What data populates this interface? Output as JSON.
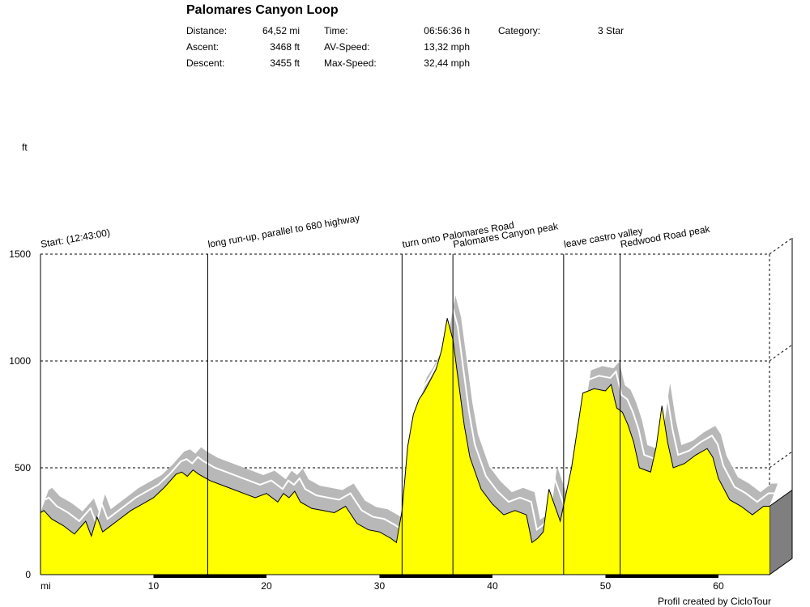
{
  "header": {
    "title": "Palomares Canyon Loop",
    "stats": [
      {
        "label": "Distance:",
        "value": "64,52 mi"
      },
      {
        "label": "Ascent:",
        "value": "3468 ft"
      },
      {
        "label": "Descent:",
        "value": "3455 ft"
      },
      {
        "label": "Time:",
        "value": "06:56:36 h"
      },
      {
        "label": "AV-Speed:",
        "value": "13,32 mph"
      },
      {
        "label": "Max-Speed:",
        "value": "32,44 mph"
      },
      {
        "label": "Category:",
        "value": "3 Star"
      }
    ]
  },
  "footer": "Profil created by CicloTour",
  "colors": {
    "fill": "#ffff00",
    "shadow": "#b8b8b8",
    "side": "#7f7f7f"
  },
  "chart_data": {
    "type": "area",
    "ylabel": "ft",
    "xlabel": "mi",
    "xlim": [
      0,
      64.52
    ],
    "ylim": [
      0,
      1500
    ],
    "y_ticks": [
      0,
      500,
      1000,
      1500
    ],
    "x_ticks": [
      10,
      20,
      30,
      40,
      50,
      60
    ],
    "grid": true,
    "series": [
      {
        "x": [
          0,
          0.3,
          1,
          2,
          3,
          4,
          4.5,
          5,
          5.5,
          6,
          7,
          8,
          9,
          10,
          11,
          12,
          12.5,
          13,
          13.5,
          14,
          15,
          16,
          17,
          18,
          19,
          20,
          21,
          21.5,
          22,
          22.5,
          23,
          24,
          25,
          26,
          27,
          28,
          29,
          30,
          31,
          31.5,
          32,
          32.5,
          33,
          33.5,
          34,
          35,
          35.5,
          36,
          36.5,
          37,
          37.5,
          38,
          39,
          40,
          41,
          42,
          43,
          43.5,
          44,
          44.5,
          45,
          46,
          47,
          48,
          49,
          50,
          50.5,
          51,
          51.5,
          52,
          52.5,
          53,
          54,
          54.5,
          55,
          55.5,
          56,
          57,
          58,
          59,
          59.5,
          60,
          61,
          62,
          63,
          64,
          64.52
        ],
        "y": [
          290,
          300,
          260,
          230,
          190,
          250,
          180,
          270,
          200,
          220,
          260,
          300,
          330,
          360,
          410,
          470,
          480,
          460,
          490,
          470,
          440,
          420,
          400,
          380,
          360,
          380,
          340,
          380,
          360,
          390,
          340,
          310,
          300,
          290,
          320,
          240,
          210,
          200,
          170,
          150,
          300,
          600,
          750,
          820,
          860,
          960,
          1050,
          1200,
          1100,
          900,
          700,
          550,
          400,
          330,
          280,
          300,
          280,
          150,
          170,
          200,
          400,
          250,
          500,
          850,
          870,
          860,
          890,
          780,
          760,
          700,
          620,
          500,
          480,
          600,
          790,
          620,
          500,
          520,
          560,
          590,
          550,
          450,
          350,
          320,
          280,
          320,
          320
        ]
      }
    ],
    "annotations": [
      {
        "x": 0,
        "text": "Start: (12:43:00)"
      },
      {
        "x": 14.8,
        "text": "long run-up, parallel to 680 highway"
      },
      {
        "x": 32,
        "text": "turn onto Palomares Road"
      },
      {
        "x": 36.5,
        "text": "Palomares Canyon peak"
      },
      {
        "x": 46.3,
        "text": "leave castro valley"
      },
      {
        "x": 51.3,
        "text": "Redwood Road peak"
      }
    ]
  }
}
